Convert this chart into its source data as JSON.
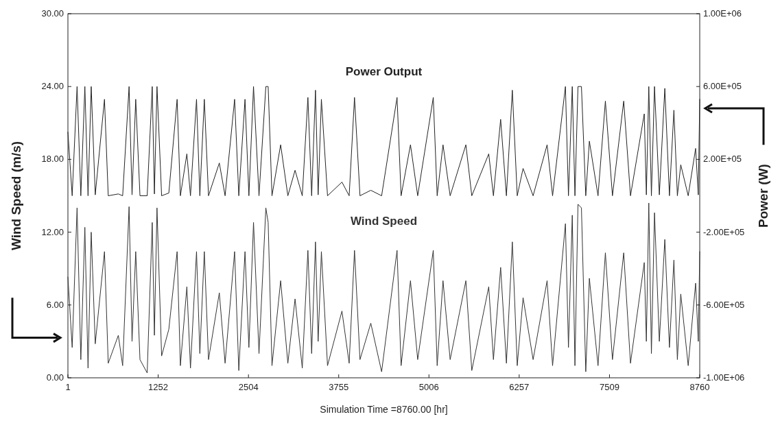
{
  "chart_data": {
    "type": "line",
    "xlabel": "Simulation Time =8760.00 [hr]",
    "ylabel": "Wind Speed (m/s)",
    "y2label": "Power (W)",
    "xlim": [
      1,
      8760
    ],
    "xticks": [
      1,
      1252,
      2504,
      3755,
      5006,
      6257,
      7509,
      8760
    ],
    "ylim": [
      0,
      30
    ],
    "yticks": [
      {
        "value": 0,
        "label": "0.00"
      },
      {
        "value": 6,
        "label": "6.00"
      },
      {
        "value": 12,
        "label": "12.00"
      },
      {
        "value": 18,
        "label": "18.00"
      },
      {
        "value": 24,
        "label": "24.00"
      },
      {
        "value": 30,
        "label": "30.00"
      }
    ],
    "y2lim": [
      -1000000,
      1000000
    ],
    "y2ticks": [
      {
        "value": -1000000,
        "label": "-1.00E+06"
      },
      {
        "value": -600000,
        "label": "-6.00E+05"
      },
      {
        "value": -200000,
        "label": "-2.00E+05"
      },
      {
        "value": 200000,
        "label": "2.00E+05"
      },
      {
        "value": 600000,
        "label": "6.00E+05"
      },
      {
        "value": 1000000,
        "label": "1.00E+06"
      }
    ],
    "x": [
      1,
      60,
      128,
      180,
      236,
      280,
      324,
      380,
      508,
      560,
      700,
      760,
      849,
      890,
      941,
      1000,
      1100,
      1170,
      1200,
      1236,
      1300,
      1400,
      1515,
      1560,
      1650,
      1700,
      1784,
      1830,
      1892,
      1950,
      2100,
      2180,
      2312,
      2370,
      2456,
      2510,
      2574,
      2650,
      2745,
      2777,
      2830,
      2950,
      3050,
      3150,
      3250,
      3328,
      3380,
      3433,
      3470,
      3515,
      3600,
      3800,
      3900,
      3974,
      4050,
      4200,
      4350,
      4564,
      4620,
      4750,
      4850,
      5066,
      5120,
      5201,
      5300,
      5518,
      5600,
      5835,
      5900,
      6000,
      6080,
      6162,
      6230,
      6311,
      6450,
      6644,
      6720,
      6898,
      6940,
      6993,
      7030,
      7072,
      7120,
      7180,
      7230,
      7350,
      7452,
      7550,
      7706,
      7800,
      7991,
      8020,
      8054,
      8090,
      8133,
      8200,
      8276,
      8340,
      8402,
      8450,
      8497,
      8600,
      8703,
      8740,
      8760
    ],
    "series": [
      {
        "name": "Power Output",
        "color": "#222222",
        "axis": "y2",
        "values": [
          350000,
          0,
          600000,
          0,
          600000,
          0,
          600000,
          5000,
          530000,
          0,
          10000,
          0,
          600000,
          5000,
          530000,
          0,
          0,
          600000,
          10000,
          600000,
          0,
          15000,
          530000,
          0,
          230000,
          0,
          530000,
          0,
          530000,
          0,
          180000,
          0,
          530000,
          0,
          530000,
          0,
          600000,
          0,
          600000,
          600000,
          0,
          280000,
          0,
          140000,
          0,
          540000,
          0,
          580000,
          5000,
          530000,
          0,
          75000,
          0,
          540000,
          0,
          30000,
          0,
          540000,
          0,
          280000,
          0,
          540000,
          0,
          280000,
          0,
          280000,
          0,
          230000,
          0,
          420000,
          0,
          580000,
          0,
          150000,
          0,
          280000,
          0,
          600000,
          0,
          600000,
          0,
          600000,
          600000,
          0,
          300000,
          0,
          520000,
          0,
          520000,
          0,
          450000,
          5000,
          600000,
          0,
          600000,
          5000,
          590000,
          0,
          470000,
          0,
          170000,
          0,
          260000,
          5000,
          530000
        ]
      },
      {
        "name": "Wind Speed",
        "color": "#333333",
        "values": [
          8.3,
          2.5,
          14,
          1.5,
          12.4,
          0.8,
          12,
          2.8,
          10.4,
          1.2,
          3.5,
          1,
          14.1,
          3,
          10.4,
          1.5,
          0.4,
          12.8,
          3.5,
          14,
          1.8,
          4,
          10.4,
          1,
          7.5,
          0.8,
          10.4,
          2,
          10.4,
          1.5,
          7,
          1.2,
          10.4,
          0.6,
          10.4,
          2.5,
          12.8,
          2,
          14,
          12.8,
          1,
          8,
          1.2,
          6.5,
          0.8,
          10.5,
          2,
          11.2,
          3,
          10.4,
          1,
          5.5,
          1.2,
          10.5,
          1.5,
          4.5,
          0.5,
          10.5,
          1,
          8,
          1.5,
          10.5,
          1,
          8,
          1.5,
          8,
          0.6,
          7.5,
          1.5,
          9.1,
          1.2,
          11.2,
          1,
          6.6,
          1.5,
          8,
          1,
          12.7,
          2.5,
          13.4,
          1,
          14.3,
          14,
          0.5,
          8.2,
          1,
          10.3,
          1.5,
          10.3,
          1.2,
          9.5,
          3,
          14.4,
          2,
          13.6,
          3,
          11.4,
          2.5,
          9.7,
          1.5,
          6.9,
          1,
          7.8,
          3,
          10.4
        ]
      }
    ],
    "line_style": "solid"
  }
}
